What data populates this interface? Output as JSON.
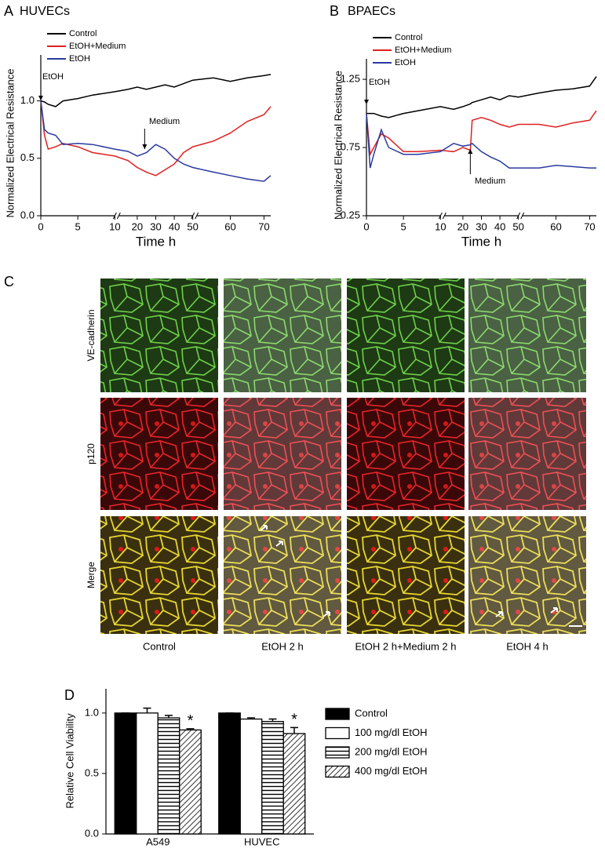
{
  "chart_data": [
    {
      "type": "line",
      "panel": "A",
      "title": "HUVECs",
      "x_label": "Time h",
      "y_label": "Normalized Electrical Resistance",
      "xlim": [
        0,
        72
      ],
      "x_breaks": [
        10,
        50
      ],
      "xticks": [
        0,
        5,
        10,
        20,
        30,
        40,
        50,
        60,
        70
      ],
      "ylim": [
        0,
        1.4
      ],
      "yticks": [
        {
          "value": 0,
          "label": "0.0"
        },
        0.5,
        {
          "value": 1,
          "label": "1.0"
        }
      ],
      "x": [
        0,
        0.5,
        1,
        2,
        3,
        5,
        7,
        10,
        15,
        20,
        25,
        30,
        35,
        40,
        45,
        50,
        55,
        60,
        65,
        70,
        72
      ],
      "series": [
        {
          "name": "Control",
          "color": "#000000",
          "values": [
            1.0,
            0.99,
            0.97,
            0.95,
            1.0,
            1.02,
            1.05,
            1.08,
            1.1,
            1.12,
            1.1,
            1.12,
            1.14,
            1.12,
            1.15,
            1.18,
            1.2,
            1.17,
            1.2,
            1.22,
            1.23
          ]
        },
        {
          "name": "EtOH+Medium",
          "color": "#e02020",
          "values": [
            1.0,
            0.7,
            0.58,
            0.6,
            0.63,
            0.6,
            0.55,
            0.52,
            0.48,
            0.42,
            0.38,
            0.35,
            0.4,
            0.45,
            0.55,
            0.6,
            0.65,
            0.72,
            0.82,
            0.88,
            0.95
          ]
        },
        {
          "name": "EtOH",
          "color": "#2b3aa0",
          "values": [
            1.0,
            0.75,
            0.72,
            0.7,
            0.62,
            0.63,
            0.62,
            0.58,
            0.56,
            0.52,
            0.55,
            0.62,
            0.58,
            0.5,
            0.45,
            0.42,
            0.38,
            0.35,
            0.32,
            0.3,
            0.35
          ]
        }
      ],
      "annotations": [
        {
          "text": "EtOH",
          "x": 0
        },
        {
          "text": "Medium",
          "x": 24
        }
      ]
    },
    {
      "type": "line",
      "panel": "B",
      "title": "BPAECs",
      "x_label": "Time h",
      "y_label": "Normalized Electrical Resistance",
      "xlim": [
        0,
        72
      ],
      "x_breaks": [
        10,
        50
      ],
      "xticks": [
        0,
        5,
        10,
        20,
        30,
        40,
        50,
        60,
        70
      ],
      "ylim": [
        0.25,
        1.4
      ],
      "yticks": [
        0.25,
        0.75,
        1.25
      ],
      "x": [
        0,
        0.5,
        1,
        2,
        3,
        5,
        7,
        10,
        15,
        20,
        24,
        25,
        30,
        35,
        40,
        45,
        50,
        55,
        60,
        65,
        70,
        72
      ],
      "series": [
        {
          "name": "Control",
          "color": "#000000",
          "values": [
            1.0,
            1.0,
            1.0,
            0.98,
            0.97,
            1.0,
            1.02,
            1.05,
            1.03,
            1.05,
            1.07,
            1.08,
            1.1,
            1.12,
            1.1,
            1.13,
            1.12,
            1.15,
            1.17,
            1.18,
            1.2,
            1.27
          ]
        },
        {
          "name": "EtOH+Medium",
          "color": "#e02020",
          "values": [
            1.0,
            0.7,
            0.75,
            0.85,
            0.82,
            0.72,
            0.72,
            0.73,
            0.72,
            0.75,
            0.73,
            0.95,
            0.97,
            0.95,
            0.92,
            0.9,
            0.92,
            0.92,
            0.9,
            0.93,
            0.95,
            1.02
          ]
        },
        {
          "name": "EtOH",
          "color": "#2b3aa0",
          "values": [
            1.0,
            0.6,
            0.7,
            0.88,
            0.75,
            0.7,
            0.7,
            0.72,
            0.78,
            0.76,
            0.77,
            0.78,
            0.72,
            0.68,
            0.65,
            0.6,
            0.6,
            0.6,
            0.62,
            0.61,
            0.6,
            0.6
          ]
        }
      ],
      "annotations": [
        {
          "text": "EtOH",
          "x": 0
        },
        {
          "text": "Medium",
          "x": 24
        }
      ]
    },
    {
      "type": "bar",
      "panel": "D",
      "y_label": "Relative Cell Viability",
      "categories": [
        "A549",
        "HUVEC"
      ],
      "ylim": [
        0,
        1.2
      ],
      "yticks": [
        {
          "value": 0,
          "label": "0.0"
        },
        0.5,
        {
          "value": 1,
          "label": "1.0"
        }
      ],
      "series": [
        {
          "name": "Control",
          "color": "#000000",
          "pattern": "solid",
          "values": [
            1.0,
            1.0
          ],
          "errors": [
            0,
            0
          ]
        },
        {
          "name": "100 mg/dl EtOH",
          "color": "#000000",
          "pattern": "none",
          "values": [
            1.0,
            0.95
          ],
          "errors": [
            0.04,
            0.01
          ]
        },
        {
          "name": "200 mg/dl EtOH",
          "color": "#000000",
          "pattern": "horizontal",
          "values": [
            0.96,
            0.93
          ],
          "errors": [
            0.02,
            0.02
          ]
        },
        {
          "name": "400 mg/dl EtOH",
          "color": "#000000",
          "pattern": "diagonal",
          "values": [
            0.86,
            0.83
          ],
          "errors": [
            0.01,
            0.05
          ]
        }
      ],
      "significance_marks": [
        "*",
        "*"
      ]
    }
  ],
  "panel_c": {
    "label": "C",
    "row_labels": [
      "VE-cadherin",
      "p120",
      "Merge"
    ],
    "column_labels": [
      "Control",
      "EtOH 2 h",
      "EtOH 2 h+Medium 2 h",
      "EtOH 4 h"
    ]
  }
}
